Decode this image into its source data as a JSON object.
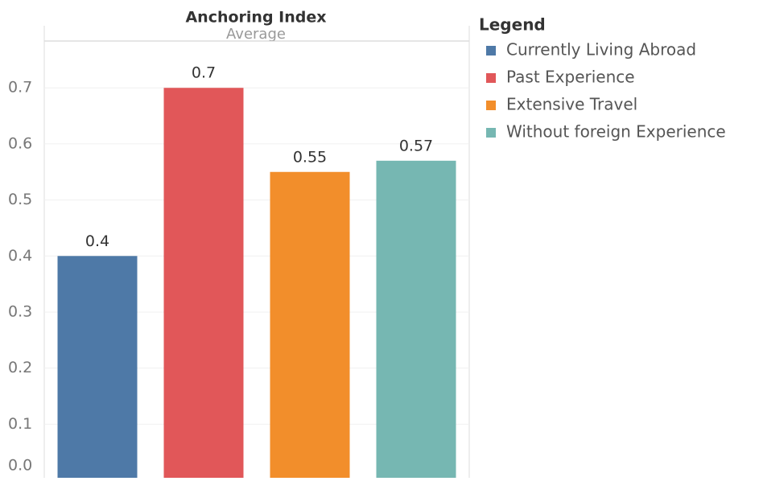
{
  "chart_data": {
    "type": "bar",
    "title": "Anchoring Index",
    "subtitle": "Average",
    "legend_title": "Legend",
    "categories": [
      "Currently Living Abroad",
      "Past Experience",
      "Extensive Travel",
      "Without foreign Experience"
    ],
    "values": [
      0.4,
      0.7,
      0.55,
      0.57
    ],
    "colors": [
      "#4e79a7",
      "#e15759",
      "#f28e2b",
      "#76b7b2"
    ],
    "ylim": [
      0,
      0.785
    ],
    "yticks": [
      {
        "value": 0,
        "label": "0.0"
      },
      0.1,
      0.2,
      0.3,
      0.4,
      0.5,
      0.6,
      0.7
    ],
    "grid": true
  }
}
